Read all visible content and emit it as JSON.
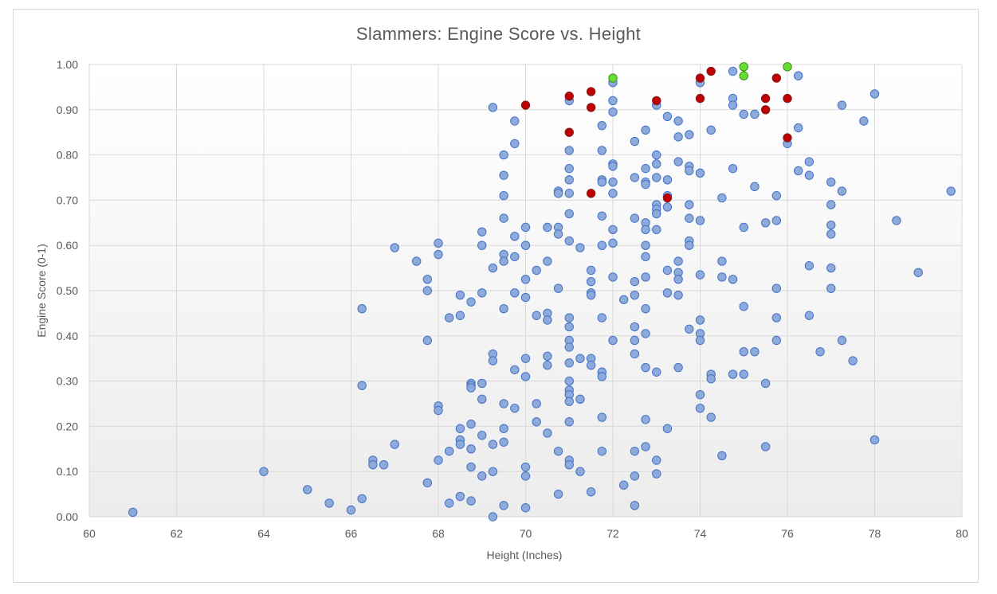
{
  "chart_data": {
    "type": "scatter",
    "title": "Slammers: Engine Score vs. Height",
    "xlabel": "Height (Inches)",
    "ylabel": "Engine Score (0-1)",
    "xlim": [
      60,
      80
    ],
    "ylim": [
      0,
      1
    ],
    "x_ticks": [
      "60",
      "62",
      "64",
      "66",
      "68",
      "70",
      "72",
      "74",
      "76",
      "78",
      "80"
    ],
    "y_ticks": [
      "0.00",
      "0.10",
      "0.20",
      "0.30",
      "0.40",
      "0.50",
      "0.60",
      "0.70",
      "0.80",
      "0.90",
      "1.00"
    ],
    "grid": true,
    "legend": "none",
    "colors": {
      "blue_fill": "#8eaadb",
      "blue_stroke": "#4472c4",
      "red_fill": "#c00000",
      "red_stroke": "#7f1f1f",
      "green_fill": "#66dd33",
      "green_stroke": "#3c8f1a",
      "grid": "#d9d9d9"
    },
    "series": [
      {
        "color": "green",
        "points": [
          [
            72,
            0.97
          ],
          [
            75,
            0.995
          ],
          [
            75,
            0.975
          ],
          [
            76,
            0.995
          ]
        ]
      },
      {
        "color": "red",
        "points": [
          [
            70,
            0.91
          ],
          [
            71,
            0.93
          ],
          [
            71,
            0.85
          ],
          [
            71.5,
            0.94
          ],
          [
            71.5,
            0.905
          ],
          [
            71.5,
            0.715
          ],
          [
            73,
            0.92
          ],
          [
            73.25,
            0.705
          ],
          [
            74,
            0.97
          ],
          [
            74,
            0.925
          ],
          [
            74.25,
            0.985
          ],
          [
            75.5,
            0.925
          ],
          [
            75.5,
            0.9
          ],
          [
            75.75,
            0.97
          ],
          [
            76,
            0.925
          ],
          [
            76,
            0.838
          ]
        ]
      },
      {
        "color": "blue",
        "points": [
          [
            61,
            0.01
          ],
          [
            64,
            0.1
          ],
          [
            65,
            0.06
          ],
          [
            65.5,
            0.03
          ],
          [
            66,
            0.015
          ],
          [
            66.25,
            0.04
          ],
          [
            66.25,
            0.29
          ],
          [
            66.25,
            0.46
          ],
          [
            66.5,
            0.125
          ],
          [
            66.5,
            0.115
          ],
          [
            66.75,
            0.115
          ],
          [
            67,
            0.16
          ],
          [
            67,
            0.595
          ],
          [
            67.5,
            0.565
          ],
          [
            67.75,
            0.525
          ],
          [
            67.75,
            0.5
          ],
          [
            67.75,
            0.39
          ],
          [
            67.75,
            0.075
          ],
          [
            68,
            0.605
          ],
          [
            68,
            0.58
          ],
          [
            68,
            0.245
          ],
          [
            68,
            0.235
          ],
          [
            68,
            0.125
          ],
          [
            68.25,
            0.44
          ],
          [
            68.25,
            0.145
          ],
          [
            68.25,
            0.03
          ],
          [
            68.5,
            0.49
          ],
          [
            68.5,
            0.445
          ],
          [
            68.5,
            0.195
          ],
          [
            68.5,
            0.17
          ],
          [
            68.5,
            0.16
          ],
          [
            68.5,
            0.045
          ],
          [
            68.75,
            0.475
          ],
          [
            68.75,
            0.295
          ],
          [
            68.75,
            0.29
          ],
          [
            68.75,
            0.285
          ],
          [
            68.75,
            0.205
          ],
          [
            68.75,
            0.15
          ],
          [
            68.75,
            0.11
          ],
          [
            68.75,
            0.035
          ],
          [
            69,
            0.63
          ],
          [
            69,
            0.6
          ],
          [
            69,
            0.495
          ],
          [
            69,
            0.295
          ],
          [
            69,
            0.26
          ],
          [
            69,
            0.18
          ],
          [
            69,
            0.09
          ],
          [
            69.25,
            0.905
          ],
          [
            69.25,
            0.55
          ],
          [
            69.25,
            0.36
          ],
          [
            69.25,
            0.345
          ],
          [
            69.25,
            0.16
          ],
          [
            69.25,
            0.1
          ],
          [
            69.25,
            0.0
          ],
          [
            69.5,
            0.8
          ],
          [
            69.5,
            0.755
          ],
          [
            69.5,
            0.71
          ],
          [
            69.5,
            0.66
          ],
          [
            69.5,
            0.58
          ],
          [
            69.5,
            0.565
          ],
          [
            69.5,
            0.46
          ],
          [
            69.5,
            0.25
          ],
          [
            69.5,
            0.195
          ],
          [
            69.5,
            0.165
          ],
          [
            69.5,
            0.025
          ],
          [
            69.75,
            0.875
          ],
          [
            69.75,
            0.825
          ],
          [
            69.75,
            0.62
          ],
          [
            69.75,
            0.575
          ],
          [
            69.75,
            0.495
          ],
          [
            69.75,
            0.325
          ],
          [
            69.75,
            0.24
          ],
          [
            70,
            0.64
          ],
          [
            70,
            0.6
          ],
          [
            70,
            0.525
          ],
          [
            70,
            0.485
          ],
          [
            70,
            0.35
          ],
          [
            70,
            0.31
          ],
          [
            70,
            0.11
          ],
          [
            70,
            0.09
          ],
          [
            70,
            0.02
          ],
          [
            70.25,
            0.545
          ],
          [
            70.25,
            0.445
          ],
          [
            70.25,
            0.25
          ],
          [
            70.25,
            0.21
          ],
          [
            70.5,
            0.64
          ],
          [
            70.5,
            0.565
          ],
          [
            70.5,
            0.45
          ],
          [
            70.5,
            0.435
          ],
          [
            70.5,
            0.355
          ],
          [
            70.5,
            0.335
          ],
          [
            70.5,
            0.185
          ],
          [
            70.75,
            0.72
          ],
          [
            70.75,
            0.715
          ],
          [
            70.75,
            0.64
          ],
          [
            70.75,
            0.625
          ],
          [
            70.75,
            0.505
          ],
          [
            70.75,
            0.145
          ],
          [
            70.75,
            0.05
          ],
          [
            71,
            0.92
          ],
          [
            71,
            0.81
          ],
          [
            71,
            0.77
          ],
          [
            71,
            0.745
          ],
          [
            71,
            0.715
          ],
          [
            71,
            0.67
          ],
          [
            71,
            0.61
          ],
          [
            71,
            0.44
          ],
          [
            71,
            0.42
          ],
          [
            71,
            0.39
          ],
          [
            71,
            0.375
          ],
          [
            71,
            0.34
          ],
          [
            71,
            0.3
          ],
          [
            71,
            0.28
          ],
          [
            71,
            0.27
          ],
          [
            71,
            0.255
          ],
          [
            71,
            0.21
          ],
          [
            71,
            0.125
          ],
          [
            71,
            0.115
          ],
          [
            71.25,
            0.595
          ],
          [
            71.25,
            0.35
          ],
          [
            71.25,
            0.26
          ],
          [
            71.25,
            0.1
          ],
          [
            71.5,
            0.545
          ],
          [
            71.5,
            0.52
          ],
          [
            71.5,
            0.495
          ],
          [
            71.5,
            0.49
          ],
          [
            71.5,
            0.35
          ],
          [
            71.5,
            0.335
          ],
          [
            71.5,
            0.055
          ],
          [
            71.75,
            0.865
          ],
          [
            71.75,
            0.81
          ],
          [
            71.75,
            0.745
          ],
          [
            71.75,
            0.74
          ],
          [
            71.75,
            0.665
          ],
          [
            71.75,
            0.6
          ],
          [
            71.75,
            0.44
          ],
          [
            71.75,
            0.32
          ],
          [
            71.75,
            0.31
          ],
          [
            71.75,
            0.22
          ],
          [
            71.75,
            0.145
          ],
          [
            72,
            0.96
          ],
          [
            72,
            0.92
          ],
          [
            72,
            0.895
          ],
          [
            72,
            0.78
          ],
          [
            72,
            0.775
          ],
          [
            72,
            0.74
          ],
          [
            72,
            0.715
          ],
          [
            72,
            0.635
          ],
          [
            72,
            0.605
          ],
          [
            72,
            0.53
          ],
          [
            72,
            0.39
          ],
          [
            72.25,
            0.48
          ],
          [
            72.25,
            0.07
          ],
          [
            72.5,
            0.83
          ],
          [
            72.5,
            0.75
          ],
          [
            72.5,
            0.66
          ],
          [
            72.5,
            0.52
          ],
          [
            72.5,
            0.49
          ],
          [
            72.5,
            0.42
          ],
          [
            72.5,
            0.39
          ],
          [
            72.5,
            0.36
          ],
          [
            72.5,
            0.145
          ],
          [
            72.5,
            0.09
          ],
          [
            72.5,
            0.025
          ],
          [
            72.75,
            0.855
          ],
          [
            72.75,
            0.77
          ],
          [
            72.75,
            0.74
          ],
          [
            72.75,
            0.735
          ],
          [
            72.75,
            0.65
          ],
          [
            72.75,
            0.635
          ],
          [
            72.75,
            0.6
          ],
          [
            72.75,
            0.575
          ],
          [
            72.75,
            0.53
          ],
          [
            72.75,
            0.46
          ],
          [
            72.75,
            0.405
          ],
          [
            72.75,
            0.33
          ],
          [
            72.75,
            0.215
          ],
          [
            72.75,
            0.155
          ],
          [
            73,
            0.91
          ],
          [
            73,
            0.8
          ],
          [
            73,
            0.78
          ],
          [
            73,
            0.75
          ],
          [
            73,
            0.69
          ],
          [
            73,
            0.68
          ],
          [
            73,
            0.67
          ],
          [
            73,
            0.635
          ],
          [
            73,
            0.32
          ],
          [
            73,
            0.125
          ],
          [
            73,
            0.095
          ],
          [
            73.25,
            0.885
          ],
          [
            73.25,
            0.745
          ],
          [
            73.25,
            0.71
          ],
          [
            73.25,
            0.685
          ],
          [
            73.25,
            0.545
          ],
          [
            73.25,
            0.495
          ],
          [
            73.25,
            0.195
          ],
          [
            73.5,
            0.875
          ],
          [
            73.5,
            0.84
          ],
          [
            73.5,
            0.785
          ],
          [
            73.5,
            0.565
          ],
          [
            73.5,
            0.54
          ],
          [
            73.5,
            0.525
          ],
          [
            73.5,
            0.49
          ],
          [
            73.5,
            0.33
          ],
          [
            73.75,
            0.845
          ],
          [
            73.75,
            0.775
          ],
          [
            73.75,
            0.765
          ],
          [
            73.75,
            0.69
          ],
          [
            73.75,
            0.66
          ],
          [
            73.75,
            0.61
          ],
          [
            73.75,
            0.6
          ],
          [
            73.75,
            0.415
          ],
          [
            74,
            0.96
          ],
          [
            74,
            0.76
          ],
          [
            74,
            0.655
          ],
          [
            74,
            0.535
          ],
          [
            74,
            0.435
          ],
          [
            74,
            0.405
          ],
          [
            74,
            0.39
          ],
          [
            74,
            0.27
          ],
          [
            74,
            0.24
          ],
          [
            74.25,
            0.855
          ],
          [
            74.25,
            0.315
          ],
          [
            74.25,
            0.305
          ],
          [
            74.25,
            0.22
          ],
          [
            74.5,
            0.705
          ],
          [
            74.5,
            0.565
          ],
          [
            74.5,
            0.53
          ],
          [
            74.5,
            0.135
          ],
          [
            74.75,
            0.985
          ],
          [
            74.75,
            0.925
          ],
          [
            74.75,
            0.91
          ],
          [
            74.75,
            0.77
          ],
          [
            74.75,
            0.525
          ],
          [
            74.75,
            0.315
          ],
          [
            75,
            0.89
          ],
          [
            75,
            0.64
          ],
          [
            75,
            0.465
          ],
          [
            75,
            0.365
          ],
          [
            75,
            0.315
          ],
          [
            75.25,
            0.89
          ],
          [
            75.25,
            0.73
          ],
          [
            75.25,
            0.365
          ],
          [
            75.5,
            0.65
          ],
          [
            75.5,
            0.295
          ],
          [
            75.5,
            0.155
          ],
          [
            75.75,
            0.71
          ],
          [
            75.75,
            0.655
          ],
          [
            75.75,
            0.505
          ],
          [
            75.75,
            0.44
          ],
          [
            75.75,
            0.39
          ],
          [
            76,
            0.825
          ],
          [
            76.25,
            0.975
          ],
          [
            76.25,
            0.86
          ],
          [
            76.25,
            0.765
          ],
          [
            76.5,
            0.785
          ],
          [
            76.5,
            0.755
          ],
          [
            76.5,
            0.555
          ],
          [
            76.5,
            0.445
          ],
          [
            76.75,
            0.365
          ],
          [
            77,
            0.74
          ],
          [
            77,
            0.69
          ],
          [
            77,
            0.645
          ],
          [
            77,
            0.625
          ],
          [
            77,
            0.55
          ],
          [
            77,
            0.505
          ],
          [
            77.25,
            0.91
          ],
          [
            77.25,
            0.72
          ],
          [
            77.25,
            0.39
          ],
          [
            77.5,
            0.345
          ],
          [
            77.75,
            0.875
          ],
          [
            78,
            0.935
          ],
          [
            78,
            0.17
          ],
          [
            78.5,
            0.655
          ],
          [
            79,
            0.54
          ],
          [
            79.75,
            0.72
          ]
        ]
      }
    ]
  }
}
